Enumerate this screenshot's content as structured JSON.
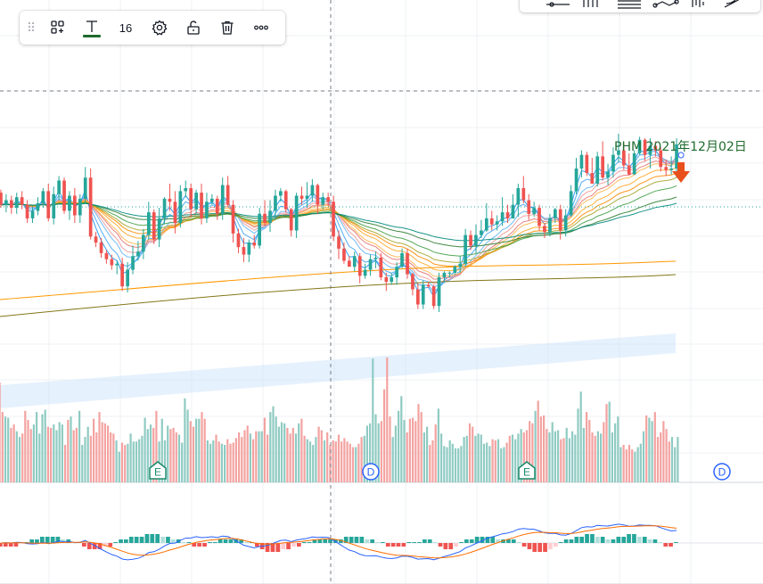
{
  "toolbar": {
    "font_size": "16",
    "text_color": "#1e6b2e",
    "items": [
      "drag-handle-icon",
      "object-tree-icon",
      "text-color-icon",
      "font-size",
      "settings-icon",
      "unlock-icon",
      "trash-icon",
      "more-icon"
    ]
  },
  "annotation": {
    "label": "PHM 2021年12月02日",
    "arrow_color": "#e8501c"
  },
  "event_markers": [
    {
      "label": "E",
      "kind": "earnings",
      "color": "#1a8a6a"
    },
    {
      "label": "D",
      "kind": "dividend",
      "color": "#2962ff"
    },
    {
      "label": "E",
      "kind": "earnings",
      "color": "#1a8a6a"
    },
    {
      "label": "D",
      "kind": "dividend",
      "color": "#2962ff"
    }
  ],
  "colors": {
    "up": "#26a69a",
    "down": "#ef5350",
    "volume_up": "#8fcbc2",
    "volume_down": "#f3a3a1",
    "grid": "#eef0f3"
  },
  "chart_data": {
    "type": "candlestick",
    "title": "PHM",
    "grid": true,
    "ohlc": [
      [
        213,
        205,
        215,
        203
      ],
      [
        205,
        208,
        212,
        200
      ],
      [
        208,
        203,
        211,
        199
      ],
      [
        203,
        210,
        213,
        199
      ],
      [
        210,
        205,
        214,
        202
      ],
      [
        205,
        196,
        208,
        193
      ],
      [
        196,
        201,
        204,
        193
      ],
      [
        201,
        206,
        210,
        198
      ],
      [
        206,
        214,
        216,
        203
      ],
      [
        214,
        196,
        219,
        194
      ],
      [
        196,
        212,
        217,
        192
      ],
      [
        212,
        221,
        224,
        208
      ],
      [
        221,
        201,
        223,
        199
      ],
      [
        201,
        211,
        214,
        195
      ],
      [
        211,
        198,
        216,
        193
      ],
      [
        198,
        209,
        212,
        193
      ],
      [
        209,
        223,
        230,
        206
      ],
      [
        223,
        184,
        229,
        182
      ],
      [
        184,
        180,
        187,
        177
      ],
      [
        180,
        173,
        183,
        170
      ],
      [
        173,
        169,
        175,
        166
      ],
      [
        169,
        165,
        172,
        162
      ],
      [
        165,
        166,
        168,
        159
      ],
      [
        166,
        151,
        170,
        148
      ],
      [
        151,
        162,
        167,
        147
      ],
      [
        162,
        171,
        178,
        159
      ],
      [
        171,
        174,
        181,
        168
      ],
      [
        174,
        185,
        189,
        169
      ],
      [
        185,
        200,
        207,
        182
      ],
      [
        200,
        182,
        202,
        179
      ],
      [
        182,
        196,
        203,
        177
      ],
      [
        196,
        209,
        210,
        192
      ],
      [
        209,
        207,
        219,
        201
      ],
      [
        207,
        193,
        214,
        186
      ],
      [
        193,
        214,
        218,
        190
      ],
      [
        214,
        216,
        221,
        210
      ],
      [
        216,
        202,
        219,
        197
      ],
      [
        202,
        213,
        215,
        199
      ],
      [
        213,
        196,
        219,
        192
      ],
      [
        196,
        207,
        213,
        193
      ],
      [
        207,
        209,
        212,
        205
      ],
      [
        209,
        199,
        211,
        195
      ],
      [
        199,
        218,
        223,
        195
      ],
      [
        218,
        205,
        224,
        204
      ],
      [
        205,
        186,
        208,
        180
      ],
      [
        186,
        177,
        189,
        173
      ],
      [
        177,
        172,
        183,
        167
      ],
      [
        172,
        180,
        182,
        167
      ],
      [
        180,
        178,
        185,
        176
      ],
      [
        178,
        199,
        203,
        176
      ],
      [
        199,
        193,
        208,
        191
      ],
      [
        193,
        201,
        208,
        187
      ],
      [
        201,
        211,
        215,
        195
      ],
      [
        211,
        214,
        216,
        207
      ],
      [
        214,
        202,
        215,
        200
      ],
      [
        202,
        188,
        203,
        184
      ],
      [
        188,
        211,
        213,
        183
      ],
      [
        211,
        209,
        217,
        205
      ],
      [
        209,
        211,
        220,
        203
      ],
      [
        211,
        218,
        222,
        207
      ],
      [
        218,
        205,
        219,
        199
      ],
      [
        205,
        210,
        213,
        202
      ],
      [
        210,
        207,
        213,
        204
      ],
      [
        207,
        184,
        211,
        181
      ],
      [
        184,
        176,
        188,
        169
      ],
      [
        176,
        168,
        180,
        166
      ],
      [
        168,
        164,
        171,
        164
      ],
      [
        164,
        171,
        174,
        161
      ],
      [
        171,
        158,
        173,
        153
      ],
      [
        158,
        162,
        166,
        156
      ],
      [
        162,
        169,
        172,
        158
      ],
      [
        169,
        170,
        174,
        163
      ],
      [
        170,
        157,
        173,
        155
      ],
      [
        157,
        154,
        160,
        148
      ],
      [
        154,
        157,
        160,
        152
      ],
      [
        157,
        164,
        167,
        152
      ],
      [
        164,
        173,
        176,
        163
      ],
      [
        173,
        159,
        176,
        156
      ],
      [
        159,
        149,
        160,
        145
      ],
      [
        149,
        139,
        153,
        136
      ],
      [
        139,
        152,
        155,
        136
      ],
      [
        152,
        151,
        154,
        150
      ],
      [
        151,
        138,
        152,
        136
      ],
      [
        138,
        157,
        160,
        134
      ],
      [
        157,
        160,
        161,
        154
      ],
      [
        160,
        160,
        161,
        157
      ],
      [
        160,
        164,
        165,
        159
      ],
      [
        164,
        166,
        171,
        160
      ],
      [
        166,
        185,
        189,
        164
      ],
      [
        185,
        178,
        188,
        175
      ],
      [
        178,
        185,
        192,
        173
      ],
      [
        185,
        188,
        195,
        183
      ],
      [
        188,
        196,
        206,
        187
      ],
      [
        196,
        192,
        201,
        188
      ],
      [
        192,
        194,
        198,
        188
      ],
      [
        194,
        200,
        210,
        191
      ],
      [
        200,
        196,
        205,
        193
      ],
      [
        196,
        205,
        212,
        196
      ],
      [
        205,
        216,
        219,
        197
      ],
      [
        216,
        208,
        224,
        206
      ],
      [
        208,
        199,
        212,
        195
      ],
      [
        199,
        203,
        207,
        197
      ],
      [
        203,
        191,
        205,
        188
      ],
      [
        191,
        187,
        193,
        183
      ],
      [
        187,
        196,
        199,
        184
      ],
      [
        196,
        202,
        203,
        193
      ],
      [
        202,
        188,
        205,
        182
      ],
      [
        188,
        198,
        202,
        184
      ],
      [
        198,
        214,
        218,
        197
      ],
      [
        214,
        229,
        236,
        212
      ],
      [
        229,
        238,
        241,
        223
      ],
      [
        238,
        226,
        240,
        224
      ],
      [
        226,
        219,
        236,
        219
      ],
      [
        219,
        237,
        240,
        217
      ],
      [
        237,
        223,
        247,
        221
      ],
      [
        223,
        227,
        232,
        218
      ],
      [
        227,
        238,
        243,
        223
      ],
      [
        238,
        241,
        252,
        233
      ],
      [
        241,
        231,
        246,
        228
      ],
      [
        231,
        225,
        239,
        225
      ],
      [
        225,
        239,
        241,
        230
      ],
      [
        239,
        248,
        250,
        238
      ],
      [
        248,
        238,
        249,
        234
      ],
      [
        238,
        244,
        249,
        229
      ],
      [
        244,
        241,
        247,
        237
      ],
      [
        241,
        230,
        243,
        227
      ],
      [
        230,
        228,
        235,
        224
      ],
      [
        228,
        229,
        237,
        225
      ],
      [
        229,
        245,
        249,
        223
      ]
    ],
    "volume": [
      88,
      62,
      58,
      57,
      48,
      51,
      45,
      40,
      43,
      63,
      55,
      47,
      51,
      62,
      43,
      60,
      64,
      49,
      48,
      51,
      46,
      53,
      51,
      33,
      55,
      58,
      46,
      48,
      63,
      33,
      40,
      49,
      41,
      56,
      44,
      62,
      53,
      52,
      50,
      44,
      43,
      37,
      27,
      35,
      33,
      34,
      43,
      36,
      36,
      38,
      41,
      57,
      47,
      51,
      48,
      63,
      36,
      56,
      37,
      50,
      47,
      48,
      44,
      42,
      35,
      74,
      64,
      54,
      49,
      56,
      56,
      62,
      56,
      37,
      34,
      37,
      42,
      36,
      34,
      33,
      38,
      34,
      35,
      39,
      44,
      40,
      46,
      50,
      43,
      38,
      45,
      45,
      45,
      57,
      42,
      62,
      67,
      58,
      49,
      53,
      52,
      48,
      43,
      48,
      43,
      52,
      56,
      41,
      38,
      36,
      33,
      40,
      49,
      46,
      37,
      44,
      33,
      37,
      36,
      42,
      36,
      39,
      36,
      34,
      31,
      31,
      34,
      40,
      41,
      50,
      52,
      109,
      60,
      52,
      54,
      82,
      110,
      58,
      40,
      50,
      63,
      76,
      55,
      44,
      56,
      57,
      54,
      69,
      62,
      44,
      49,
      33,
      37,
      51,
      65,
      43,
      32,
      31,
      37,
      34,
      30,
      30,
      32,
      40,
      41,
      52,
      49,
      41,
      43,
      42,
      34,
      35,
      32,
      38,
      37,
      38,
      30,
      31,
      35,
      41,
      42,
      38,
      43,
      47,
      44,
      46,
      54,
      52,
      63,
      72,
      58,
      59,
      47,
      44,
      53,
      45,
      46,
      38,
      39,
      48,
      39,
      45,
      42,
      65,
      80,
      48,
      62,
      55,
      44,
      41,
      45,
      43,
      53,
      69,
      71,
      44,
      52,
      58,
      31,
      33,
      29,
      33,
      29,
      27,
      31,
      34,
      45,
      59,
      57,
      54,
      62,
      40,
      44,
      54,
      47,
      36,
      40,
      31,
      40
    ],
    "volume_up_flags_seed": 7,
    "macd_histogram": [
      -1,
      -1,
      -1,
      -1,
      0,
      0,
      1,
      1,
      2,
      2,
      2,
      2,
      1,
      1,
      0,
      0,
      -1,
      -2,
      -2,
      -2,
      -1,
      -1,
      0,
      1,
      1,
      2,
      2,
      2,
      3,
      3,
      3,
      2,
      2,
      1,
      1,
      0,
      0,
      -1,
      -1,
      -1,
      0,
      0,
      1,
      1,
      1,
      1,
      1,
      0,
      0,
      -1,
      -2,
      -3,
      -3,
      -3,
      -2,
      -2,
      -1,
      -1,
      0,
      0,
      1,
      1,
      1,
      1,
      1,
      1,
      2,
      2,
      2,
      2,
      1,
      1,
      0,
      0,
      -1,
      -1,
      -1,
      -1,
      0,
      0,
      0,
      1,
      1,
      0,
      -1,
      -2,
      -2,
      -1,
      0,
      1,
      1,
      2,
      2,
      2,
      2,
      1,
      1,
      1,
      1,
      0,
      -1,
      -2,
      -3,
      -3,
      -3,
      -2,
      -1,
      0,
      1,
      1,
      2,
      2,
      3,
      3,
      2,
      2,
      1,
      1,
      2,
      2,
      3,
      3,
      2,
      2,
      1,
      1,
      0,
      -1,
      -1,
      0
    ]
  }
}
